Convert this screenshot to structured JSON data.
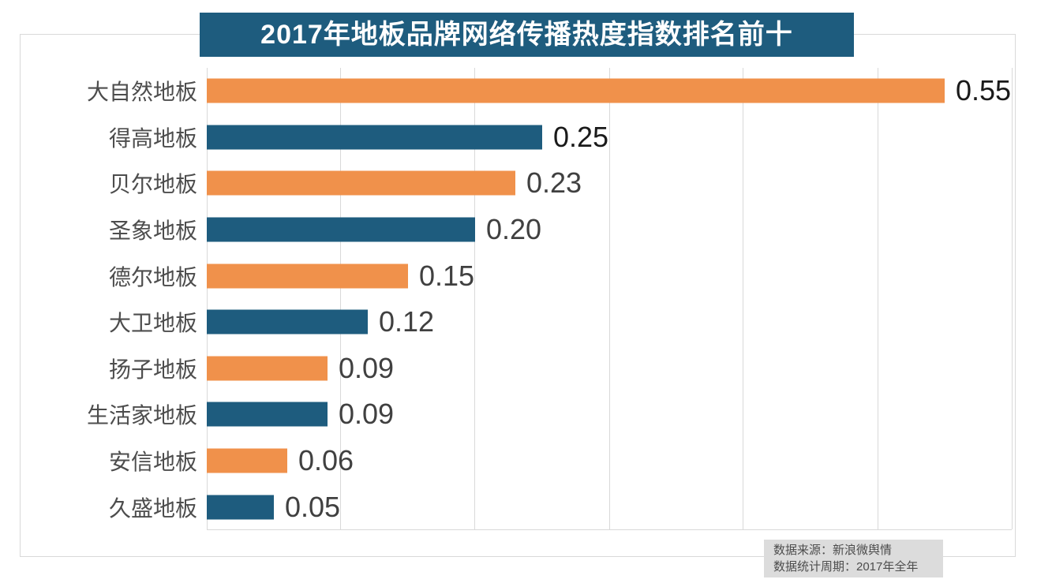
{
  "title": "2017年地板品牌网络传播热度指数排名前十",
  "colors": {
    "orange": "#F0914B",
    "blue": "#1E5C7E",
    "grid": "#D9D9D9",
    "title_bg": "#1E5C7E",
    "title_text": "#FFFFFF",
    "category_text": "#4D4D4D",
    "value_text_dark": "#1A1A1A",
    "value_text_gray": "#404040",
    "footer_bg": "#DCDCDC",
    "footer_text": "#4D4D4D"
  },
  "footer": {
    "line1": "数据来源：新浪微舆情",
    "line2": "数据统计周期：2017年全年"
  },
  "chart_data": {
    "type": "bar",
    "orientation": "horizontal",
    "title": "2017年地板品牌网络传播热度指数排名前十",
    "categories": [
      "大自然地板",
      "得高地板",
      "贝尔地板",
      "圣象地板",
      "德尔地板",
      "大卫地板",
      "扬子地板",
      "生活家地板",
      "安信地板",
      "久盛地板"
    ],
    "values": [
      0.55,
      0.25,
      0.23,
      0.2,
      0.15,
      0.12,
      0.09,
      0.09,
      0.06,
      0.05
    ],
    "value_labels": [
      "0.55",
      "0.25",
      "0.23",
      "0.20",
      "0.15",
      "0.12",
      "0.09",
      "0.09",
      "0.06",
      "0.05"
    ],
    "bar_colors": [
      "#F0914B",
      "#1E5C7E",
      "#F0914B",
      "#1E5C7E",
      "#F0914B",
      "#1E5C7E",
      "#F0914B",
      "#1E5C7E",
      "#F0914B",
      "#1E5C7E"
    ],
    "value_label_colors": [
      "#1A1A1A",
      "#1A1A1A",
      "#404040",
      "#404040",
      "#404040",
      "#404040",
      "#404040",
      "#404040",
      "#404040",
      "#404040"
    ],
    "xlabel": "",
    "ylabel": "",
    "xlim": [
      0,
      0.6
    ],
    "gridline_step": 0.1,
    "grid": true,
    "legend": false,
    "source_note": "数据来源：新浪微舆情",
    "period_note": "数据统计周期：2017年全年"
  }
}
